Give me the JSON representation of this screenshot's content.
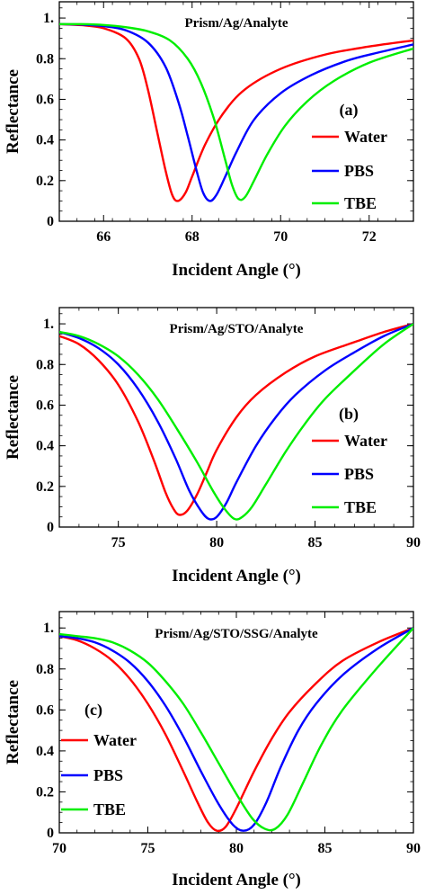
{
  "figure": {
    "ylabel": "Reflectance",
    "xlabel": "Incident Angle (°)"
  },
  "chart_data": [
    {
      "type": "line",
      "title": "Prism/Ag/Analyte",
      "panel": "(a)",
      "xlabel": "Incident Angle (°)",
      "ylabel": "Reflectance",
      "xlim": [
        65,
        73
      ],
      "ylim": [
        0,
        1.08
      ],
      "xticks": [
        "66",
        "68",
        "70",
        "72"
      ],
      "yticks": [
        "0",
        "0.2",
        "0.4",
        "0.6",
        "0.8",
        "1."
      ],
      "grid": false,
      "legend_position": "right",
      "series": [
        {
          "name": "Water",
          "color": "#ff0000",
          "points": [
            [
              65,
              0.97
            ],
            [
              65.5,
              0.965
            ],
            [
              66,
              0.95
            ],
            [
              66.5,
              0.9
            ],
            [
              66.8,
              0.8
            ],
            [
              67.0,
              0.65
            ],
            [
              67.2,
              0.45
            ],
            [
              67.4,
              0.25
            ],
            [
              67.55,
              0.13
            ],
            [
              67.68,
              0.1
            ],
            [
              67.85,
              0.14
            ],
            [
              68.0,
              0.22
            ],
            [
              68.3,
              0.38
            ],
            [
              68.7,
              0.53
            ],
            [
              69.2,
              0.65
            ],
            [
              70,
              0.75
            ],
            [
              71,
              0.82
            ],
            [
              72,
              0.86
            ],
            [
              73,
              0.89
            ]
          ]
        },
        {
          "name": "PBS",
          "color": "#0000ff",
          "points": [
            [
              65,
              0.97
            ],
            [
              65.5,
              0.968
            ],
            [
              66,
              0.96
            ],
            [
              66.5,
              0.94
            ],
            [
              67,
              0.88
            ],
            [
              67.4,
              0.76
            ],
            [
              67.7,
              0.58
            ],
            [
              67.9,
              0.42
            ],
            [
              68.1,
              0.25
            ],
            [
              68.25,
              0.14
            ],
            [
              68.4,
              0.1
            ],
            [
              68.55,
              0.13
            ],
            [
              68.75,
              0.22
            ],
            [
              69.0,
              0.34
            ],
            [
              69.4,
              0.5
            ],
            [
              70,
              0.63
            ],
            [
              70.7,
              0.72
            ],
            [
              71.5,
              0.79
            ],
            [
              72.2,
              0.83
            ],
            [
              73,
              0.87
            ]
          ]
        },
        {
          "name": "TBE",
          "color": "#00ee00",
          "points": [
            [
              65,
              0.97
            ],
            [
              65.5,
              0.97
            ],
            [
              66,
              0.966
            ],
            [
              66.5,
              0.955
            ],
            [
              67,
              0.935
            ],
            [
              67.5,
              0.89
            ],
            [
              67.9,
              0.8
            ],
            [
              68.2,
              0.68
            ],
            [
              68.5,
              0.5
            ],
            [
              68.75,
              0.3
            ],
            [
              68.9,
              0.18
            ],
            [
              69.05,
              0.11
            ],
            [
              69.2,
              0.12
            ],
            [
              69.4,
              0.2
            ],
            [
              69.7,
              0.33
            ],
            [
              70.1,
              0.47
            ],
            [
              70.6,
              0.59
            ],
            [
              71.2,
              0.69
            ],
            [
              72,
              0.78
            ],
            [
              73,
              0.85
            ]
          ]
        }
      ]
    },
    {
      "type": "line",
      "title": "Prism/Ag/STO/Analyte",
      "panel": "(b)",
      "xlabel": "Incident Angle (°)",
      "ylabel": "Reflectance",
      "xlim": [
        72,
        90
      ],
      "ylim": [
        0,
        1.08
      ],
      "xticks": [
        "75",
        "80",
        "85",
        "90"
      ],
      "yticks": [
        "0",
        "0.2",
        "0.4",
        "0.6",
        "0.8",
        "1."
      ],
      "grid": false,
      "legend_position": "right",
      "series": [
        {
          "name": "Water",
          "color": "#ff0000",
          "points": [
            [
              72,
              0.94
            ],
            [
              73,
              0.9
            ],
            [
              74,
              0.82
            ],
            [
              75,
              0.7
            ],
            [
              76,
              0.52
            ],
            [
              76.8,
              0.33
            ],
            [
              77.4,
              0.17
            ],
            [
              77.8,
              0.09
            ],
            [
              78.1,
              0.06
            ],
            [
              78.5,
              0.08
            ],
            [
              79,
              0.16
            ],
            [
              79.5,
              0.27
            ],
            [
              80,
              0.38
            ],
            [
              81,
              0.54
            ],
            [
              82,
              0.65
            ],
            [
              83.5,
              0.76
            ],
            [
              85,
              0.84
            ],
            [
              87,
              0.91
            ],
            [
              88.5,
              0.96
            ],
            [
              90,
              1.0
            ]
          ]
        },
        {
          "name": "PBS",
          "color": "#0000ff",
          "points": [
            [
              72,
              0.96
            ],
            [
              73,
              0.93
            ],
            [
              74,
              0.88
            ],
            [
              75,
              0.8
            ],
            [
              76,
              0.68
            ],
            [
              77,
              0.52
            ],
            [
              77.9,
              0.34
            ],
            [
              78.6,
              0.18
            ],
            [
              79.2,
              0.08
            ],
            [
              79.6,
              0.04
            ],
            [
              80.0,
              0.05
            ],
            [
              80.5,
              0.12
            ],
            [
              81,
              0.22
            ],
            [
              82,
              0.4
            ],
            [
              83,
              0.54
            ],
            [
              84,
              0.65
            ],
            [
              85.5,
              0.77
            ],
            [
              87,
              0.86
            ],
            [
              88.5,
              0.94
            ],
            [
              90,
              1.0
            ]
          ]
        },
        {
          "name": "TBE",
          "color": "#00ee00",
          "points": [
            [
              72,
              0.96
            ],
            [
              73,
              0.94
            ],
            [
              74,
              0.9
            ],
            [
              75,
              0.84
            ],
            [
              76,
              0.75
            ],
            [
              77,
              0.63
            ],
            [
              78,
              0.48
            ],
            [
              79,
              0.32
            ],
            [
              79.8,
              0.18
            ],
            [
              80.4,
              0.09
            ],
            [
              80.9,
              0.04
            ],
            [
              81.3,
              0.05
            ],
            [
              81.8,
              0.1
            ],
            [
              82.5,
              0.21
            ],
            [
              83.5,
              0.37
            ],
            [
              84.5,
              0.51
            ],
            [
              85.5,
              0.63
            ],
            [
              87,
              0.77
            ],
            [
              88.5,
              0.9
            ],
            [
              90,
              1.0
            ]
          ]
        }
      ]
    },
    {
      "type": "line",
      "title": "Prism/Ag/STO/SSG/Analyte",
      "panel": "(c)",
      "xlabel": "Incident Angle (°)",
      "ylabel": "Reflectance",
      "xlim": [
        70,
        90
      ],
      "ylim": [
        0,
        1.08
      ],
      "xticks": [
        "70",
        "75",
        "80",
        "85",
        "90"
      ],
      "yticks": [
        "0",
        "0.2",
        "0.4",
        "0.6",
        "0.8",
        "1."
      ],
      "grid": false,
      "legend_position": "left",
      "series": [
        {
          "name": "Water",
          "color": "#ff0000",
          "points": [
            [
              70,
              0.96
            ],
            [
              71,
              0.94
            ],
            [
              72,
              0.9
            ],
            [
              73,
              0.84
            ],
            [
              74,
              0.75
            ],
            [
              75,
              0.63
            ],
            [
              76,
              0.48
            ],
            [
              77,
              0.3
            ],
            [
              77.8,
              0.15
            ],
            [
              78.4,
              0.05
            ],
            [
              78.9,
              0.01
            ],
            [
              79.4,
              0.03
            ],
            [
              80,
              0.12
            ],
            [
              81,
              0.3
            ],
            [
              82,
              0.46
            ],
            [
              83,
              0.59
            ],
            [
              84.5,
              0.73
            ],
            [
              86,
              0.84
            ],
            [
              88,
              0.93
            ],
            [
              90,
              1.0
            ]
          ]
        },
        {
          "name": "PBS",
          "color": "#0000ff",
          "points": [
            [
              70,
              0.96
            ],
            [
              71,
              0.95
            ],
            [
              72,
              0.93
            ],
            [
              73,
              0.89
            ],
            [
              74,
              0.83
            ],
            [
              75,
              0.74
            ],
            [
              76,
              0.62
            ],
            [
              77,
              0.47
            ],
            [
              78,
              0.3
            ],
            [
              79,
              0.14
            ],
            [
              79.8,
              0.04
            ],
            [
              80.4,
              0.01
            ],
            [
              81,
              0.04
            ],
            [
              81.7,
              0.15
            ],
            [
              82.5,
              0.32
            ],
            [
              83.5,
              0.5
            ],
            [
              84.5,
              0.63
            ],
            [
              86,
              0.77
            ],
            [
              88,
              0.9
            ],
            [
              90,
              1.0
            ]
          ]
        },
        {
          "name": "TBE",
          "color": "#00ee00",
          "points": [
            [
              70,
              0.97
            ],
            [
              71,
              0.96
            ],
            [
              72,
              0.95
            ],
            [
              73,
              0.93
            ],
            [
              74,
              0.89
            ],
            [
              75,
              0.83
            ],
            [
              76,
              0.74
            ],
            [
              77,
              0.63
            ],
            [
              78,
              0.49
            ],
            [
              79,
              0.34
            ],
            [
              80,
              0.19
            ],
            [
              80.9,
              0.07
            ],
            [
              81.6,
              0.02
            ],
            [
              82.2,
              0.02
            ],
            [
              82.9,
              0.09
            ],
            [
              83.8,
              0.25
            ],
            [
              84.8,
              0.43
            ],
            [
              86,
              0.6
            ],
            [
              88,
              0.81
            ],
            [
              90,
              1.0
            ]
          ]
        }
      ]
    }
  ]
}
